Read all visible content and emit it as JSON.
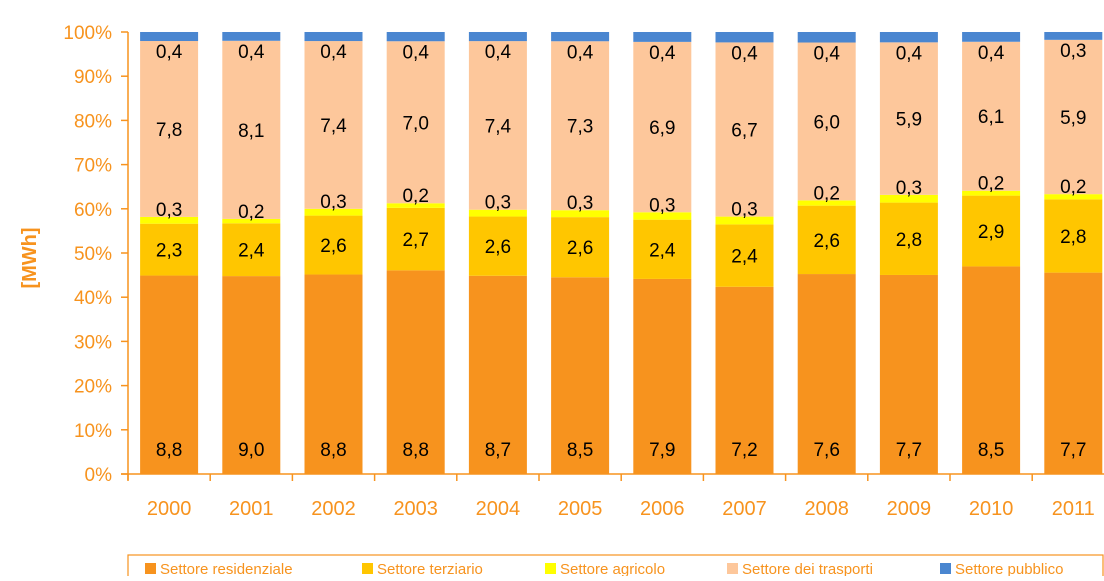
{
  "chart_data": {
    "type": "bar",
    "stacked": "percent",
    "ylabel": "[MWh]",
    "ylim": [
      0,
      100
    ],
    "yticks": [
      "0%",
      "10%",
      "20%",
      "30%",
      "40%",
      "50%",
      "60%",
      "70%",
      "80%",
      "90%",
      "100%"
    ],
    "categories": [
      "2000",
      "2001",
      "2002",
      "2003",
      "2004",
      "2005",
      "2006",
      "2007",
      "2008",
      "2009",
      "2010",
      "2011"
    ],
    "series": [
      {
        "name": "Settore residenziale",
        "color": "#f7931e",
        "values": [
          8.8,
          9.0,
          8.8,
          8.8,
          8.7,
          8.5,
          7.9,
          7.2,
          7.6,
          7.7,
          8.5,
          7.7
        ],
        "labels": [
          "8,8",
          "9,0",
          "8,8",
          "8,8",
          "8,7",
          "8,5",
          "7,9",
          "7,2",
          "7,6",
          "7,7",
          "8,5",
          "7,7"
        ]
      },
      {
        "name": "Settore terziario",
        "color": "#ffc600",
        "values": [
          2.3,
          2.4,
          2.6,
          2.7,
          2.6,
          2.6,
          2.4,
          2.4,
          2.6,
          2.8,
          2.9,
          2.8
        ],
        "labels": [
          "2,3",
          "2,4",
          "2,6",
          "2,7",
          "2,6",
          "2,6",
          "2,4",
          "2,4",
          "2,6",
          "2,8",
          "2,9",
          "2,8"
        ]
      },
      {
        "name": "Settore agricolo",
        "color": "#ffff00",
        "values": [
          0.3,
          0.2,
          0.3,
          0.2,
          0.3,
          0.3,
          0.3,
          0.3,
          0.2,
          0.3,
          0.2,
          0.2
        ],
        "labels": [
          "0,3",
          "0,2",
          "0,3",
          "0,2",
          "0,3",
          "0,3",
          "0,3",
          "0,3",
          "0,2",
          "0,3",
          "0,2",
          "0,2"
        ]
      },
      {
        "name": "Settore dei trasporti",
        "color": "#fdc79b",
        "values": [
          7.8,
          8.1,
          7.4,
          7.0,
          7.4,
          7.3,
          6.9,
          6.7,
          6.0,
          5.9,
          6.1,
          5.9
        ],
        "labels": [
          "7,8",
          "8,1",
          "7,4",
          "7,0",
          "7,4",
          "7,3",
          "6,9",
          "6,7",
          "6,0",
          "5,9",
          "6,1",
          "5,9"
        ]
      },
      {
        "name": "Settore pubblico",
        "color": "#4a86d0",
        "values": [
          0.4,
          0.4,
          0.4,
          0.4,
          0.4,
          0.4,
          0.4,
          0.4,
          0.4,
          0.4,
          0.4,
          0.3
        ],
        "labels": [
          "0,4",
          "0,4",
          "0,4",
          "0,4",
          "0,4",
          "0,4",
          "0,4",
          "0,4",
          "0,4",
          "0,4",
          "0,4",
          "0,3"
        ]
      }
    ],
    "grid": false,
    "legend_position": "bottom"
  }
}
